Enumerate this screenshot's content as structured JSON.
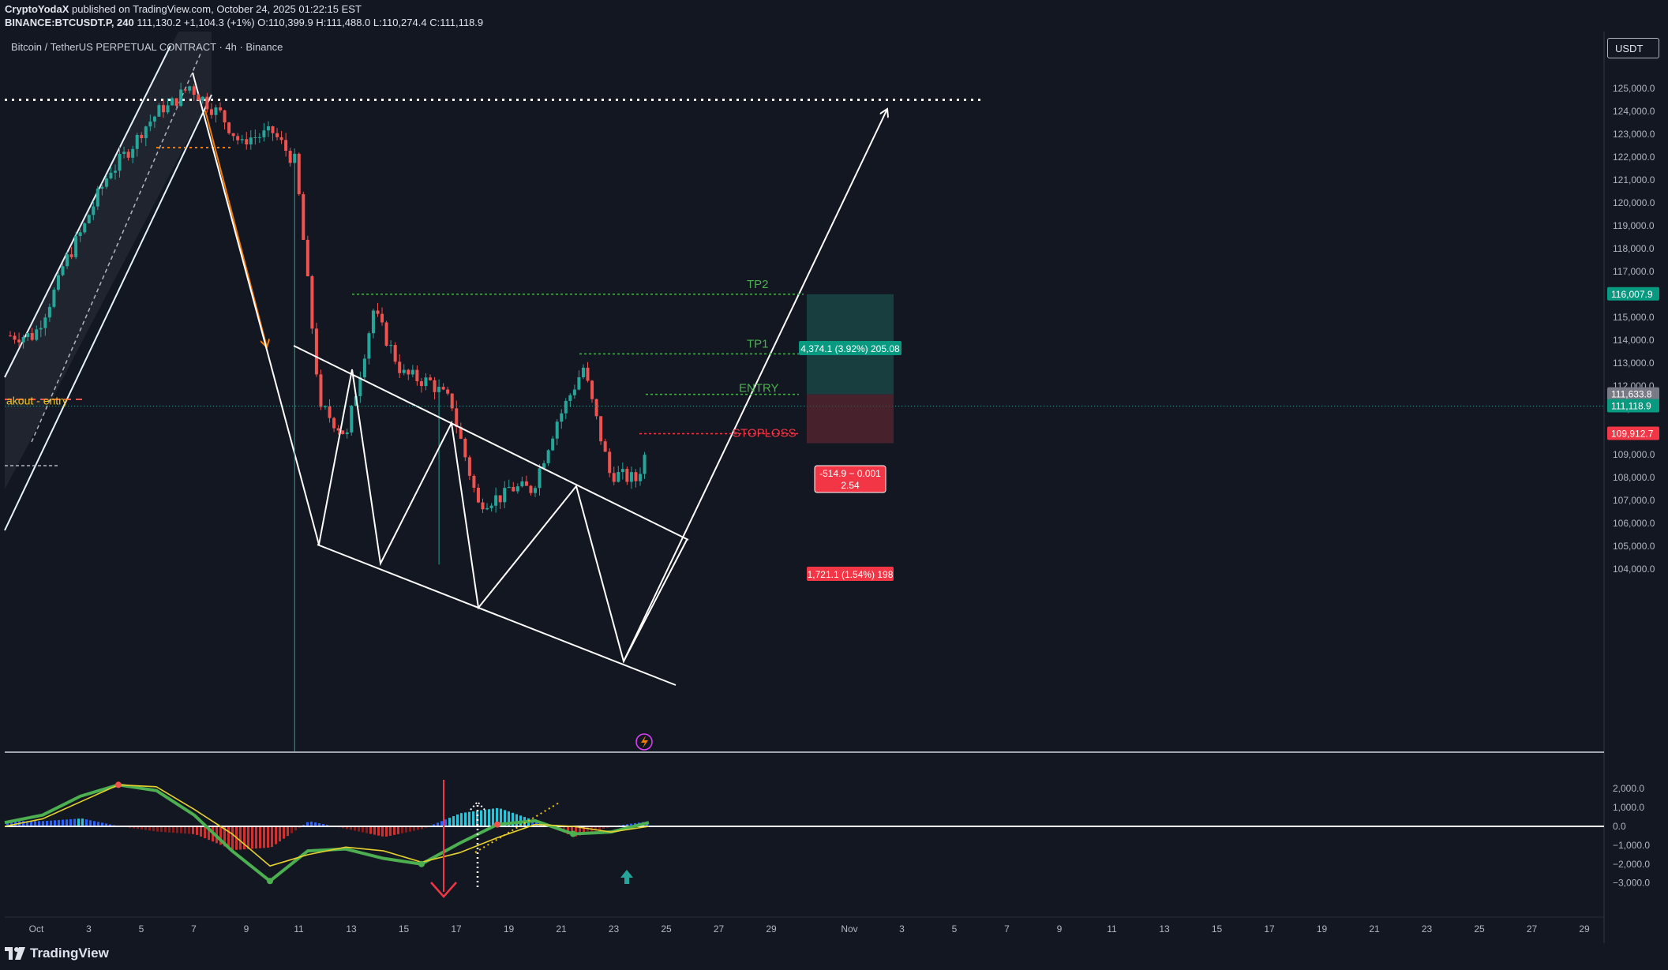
{
  "header": {
    "author": "CryptoYodaX",
    "published": " published on TradingView.com, October 24, 2025 01:22:15 EST",
    "symbol_line": "BINANCE:BTCUSDT.P, 240",
    "last": "111,130.2",
    "change": "+1,104.3 (+1%)",
    "ohlc": "O:110,399.9 H:111,488.0 L:110,274.4 C:111,118.9"
  },
  "legend_title": "Bitcoin / TetherUS PERPETUAL CONTRACT · 4h · Binance",
  "currency_unit": "USDT",
  "brand": "TradingView",
  "colors": {
    "background": "#131722",
    "bull": "#26a69a",
    "bear": "#ef5350",
    "profit_zone": "#1f5e58",
    "loss_zone": "#6b2a33",
    "target_green": "#4caf50",
    "stop_red": "#f23645"
  },
  "annotations": {
    "tp2": "TP2",
    "tp1": "TP1",
    "entry": "ENTRY",
    "stoploss": "STOPLOSS",
    "breakout_entry": "akout - entry",
    "profit_box": "4,374.1 (3.92%) 205.08",
    "loss_box": "1,721.1 (1.54%) 198",
    "ratio_line1": "-514.9 − 0.001",
    "ratio_line2": "2.54"
  },
  "price_tags": {
    "tp2": "116,007.9",
    "entry": "111,633.8",
    "last": "111,118.9",
    "stop": "109,912.7"
  },
  "chart_data": [
    {
      "type": "candlestick",
      "title": "Bitcoin / TetherUS PERPETUAL CONTRACT · 4h · Binance",
      "x_tick_labels": [
        "Oct",
        "3",
        "5",
        "7",
        "9",
        "11",
        "13",
        "15",
        "17",
        "19",
        "21",
        "23",
        "25",
        "27",
        "29",
        "Nov",
        "3",
        "5",
        "7",
        "9",
        "11",
        "13",
        "15",
        "17",
        "19",
        "21",
        "23",
        "25",
        "27",
        "29"
      ],
      "y_tick_labels": [
        "104,000.0",
        "105,000.0",
        "106,000.0",
        "107,000.0",
        "108,000.0",
        "109,000.0",
        "110,000.0",
        "111,000.0",
        "112,000.0",
        "113,000.0",
        "114,000.0",
        "115,000.0",
        "116,000.0",
        "117,000.0",
        "118,000.0",
        "119,000.0",
        "120,000.0",
        "121,000.0",
        "122,000.0",
        "123,000.0",
        "124,000.0",
        "125,000.0"
      ],
      "ylim": [
        103500,
        126000
      ],
      "key_levels": {
        "resistance_dotted": 124500,
        "tp2": 116007.9,
        "tp1": 113400,
        "entry": 111633.8,
        "last": 111118.9,
        "stop": 109912.7
      },
      "daily_path": [
        {
          "date": "Sep 30",
          "close": 114200
        },
        {
          "date": "Oct 1",
          "close": 116500
        },
        {
          "date": "Oct 2",
          "close": 119000
        },
        {
          "date": "Oct 3",
          "close": 121500
        },
        {
          "date": "Oct 4",
          "close": 122800
        },
        {
          "date": "Oct 5",
          "close": 124200
        },
        {
          "date": "Oct 6",
          "close": 125100
        },
        {
          "date": "Oct 7",
          "close": 124000
        },
        {
          "date": "Oct 8",
          "close": 122500
        },
        {
          "date": "Oct 9",
          "close": 123000
        },
        {
          "date": "Oct 10",
          "close": 121800
        },
        {
          "date": "Oct 11",
          "close": 110800
        },
        {
          "date": "Oct 12",
          "close": 109800
        },
        {
          "date": "Oct 13",
          "close": 115300
        },
        {
          "date": "Oct 14",
          "close": 112800
        },
        {
          "date": "Oct 15",
          "close": 112200
        },
        {
          "date": "Oct 16",
          "close": 111200
        },
        {
          "date": "Oct 17",
          "close": 106800
        },
        {
          "date": "Oct 18",
          "close": 107200
        },
        {
          "date": "Oct 19",
          "close": 107500
        },
        {
          "date": "Oct 20",
          "close": 110500
        },
        {
          "date": "Oct 21",
          "close": 112800
        },
        {
          "date": "Oct 22",
          "close": 108200
        },
        {
          "date": "Oct 23",
          "close": 107900
        },
        {
          "date": "Oct 24",
          "close": 111118.9
        }
      ]
    },
    {
      "type": "line",
      "title": "",
      "y_tick_labels": [
        "2,000.0",
        "1,000.0",
        "0.0",
        "−1,000.0",
        "−2,000.0",
        "−3,000.0"
      ],
      "ylim": [
        -3500,
        2500
      ],
      "series": [
        {
          "name": "",
          "values": [
            200,
            600,
            1600,
            2200,
            1900,
            600,
            -1300,
            -2900,
            -1300,
            -1200,
            -1700,
            -2000,
            -900,
            100,
            300,
            -400,
            -300,
            200
          ]
        },
        {
          "name": "",
          "values": [
            0,
            400,
            1300,
            2200,
            2100,
            900,
            -400,
            -2100,
            -1500,
            -1100,
            -1300,
            -1900,
            -1400,
            -600,
            100,
            0,
            -300,
            0
          ]
        }
      ]
    }
  ]
}
